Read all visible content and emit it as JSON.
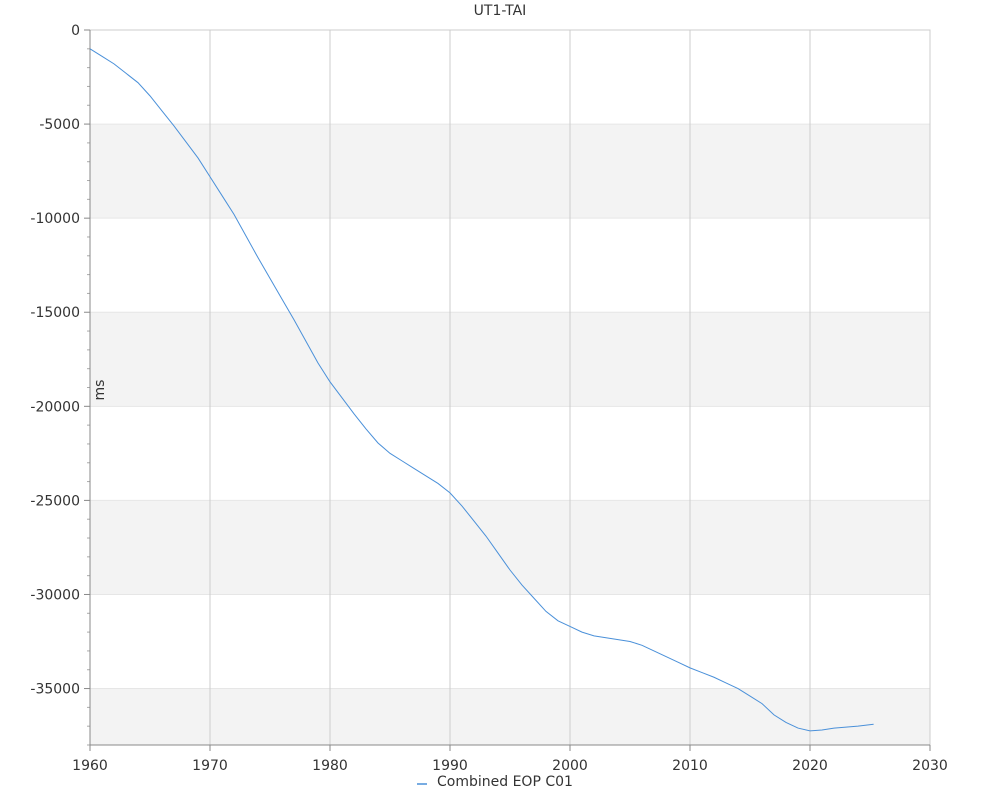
{
  "chart_data": {
    "type": "line",
    "title": "UT1-TAI",
    "xlabel": "",
    "ylabel": "ms",
    "xlim": [
      1960,
      2030
    ],
    "ylim": [
      -38000,
      0
    ],
    "x_ticks": [
      1960,
      1970,
      1980,
      1990,
      2000,
      2010,
      2020,
      2030
    ],
    "y_ticks": [
      0,
      -5000,
      -10000,
      -15000,
      -20000,
      -25000,
      -30000,
      -35000
    ],
    "grid": true,
    "legend_position": "bottom-center",
    "series": [
      {
        "name": "Combined EOP C01",
        "color": "#4a90d9",
        "x": [
          1960,
          1961,
          1962,
          1963,
          1964,
          1965,
          1966,
          1967,
          1968,
          1969,
          1970,
          1971,
          1972,
          1973,
          1974,
          1975,
          1976,
          1977,
          1978,
          1979,
          1980,
          1981,
          1982,
          1983,
          1984,
          1985,
          1986,
          1987,
          1988,
          1989,
          1990,
          1991,
          1992,
          1993,
          1994,
          1995,
          1996,
          1997,
          1998,
          1999,
          2000,
          2001,
          2002,
          2003,
          2004,
          2005,
          2006,
          2007,
          2008,
          2009,
          2010,
          2011,
          2012,
          2013,
          2014,
          2015,
          2016,
          2017,
          2018,
          2019,
          2020,
          2021,
          2022,
          2023,
          2024,
          2025.3
        ],
        "y": [
          -1000,
          -1400,
          -1800,
          -2300,
          -2800,
          -3500,
          -4300,
          -5100,
          -5950,
          -6800,
          -7800,
          -8800,
          -9800,
          -10950,
          -12100,
          -13200,
          -14300,
          -15400,
          -16550,
          -17700,
          -18700,
          -19550,
          -20400,
          -21200,
          -21950,
          -22500,
          -22900,
          -23300,
          -23700,
          -24100,
          -24600,
          -25300,
          -26100,
          -26900,
          -27800,
          -28700,
          -29500,
          -30200,
          -30900,
          -31400,
          -31700,
          -32000,
          -32200,
          -32300,
          -32400,
          -32500,
          -32700,
          -33000,
          -33300,
          -33600,
          -33900,
          -34150,
          -34400,
          -34700,
          -35000,
          -35400,
          -35800,
          -36400,
          -36800,
          -37100,
          -37250,
          -37200,
          -37100,
          -37050,
          -37000,
          -36900
        ]
      }
    ]
  }
}
